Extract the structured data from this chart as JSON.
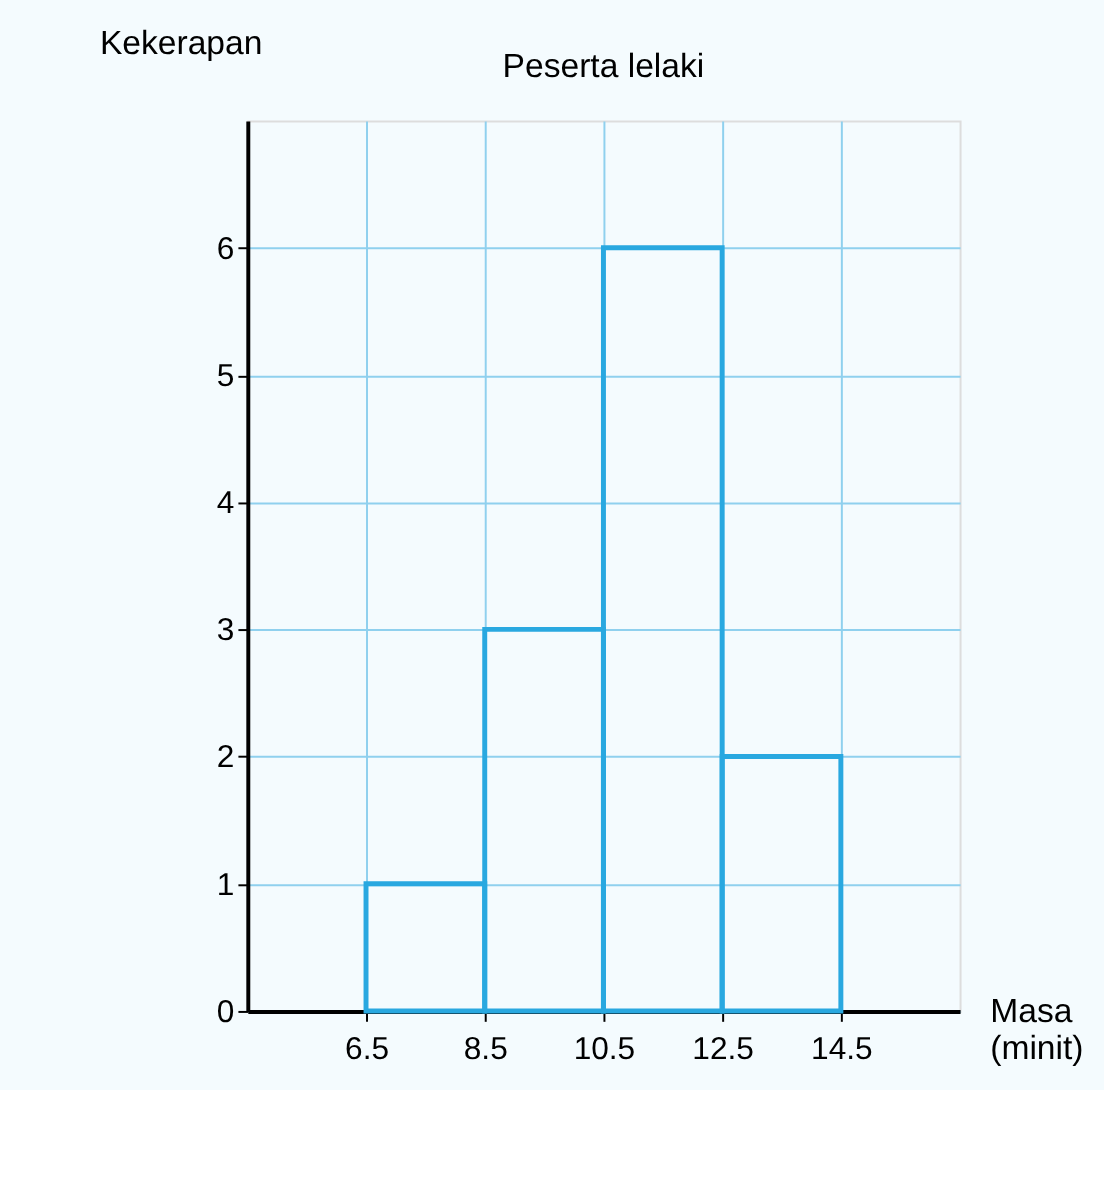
{
  "chart_data": {
    "type": "histogram",
    "title": "Peserta lelaki",
    "xlabel": "Masa (minit)",
    "ylabel": "Kekerapan",
    "bins": [
      6.5,
      8.5,
      10.5,
      12.5,
      14.5
    ],
    "values": [
      1,
      3,
      6,
      2
    ],
    "color": "#29a8e0",
    "xlim": [
      4.5,
      16.5
    ],
    "ylim": [
      0,
      7
    ],
    "xticks": [
      6.5,
      8.5,
      10.5,
      12.5,
      14.5
    ],
    "yticks": [
      0,
      1,
      2,
      3,
      4,
      5,
      6
    ],
    "grid": true
  }
}
